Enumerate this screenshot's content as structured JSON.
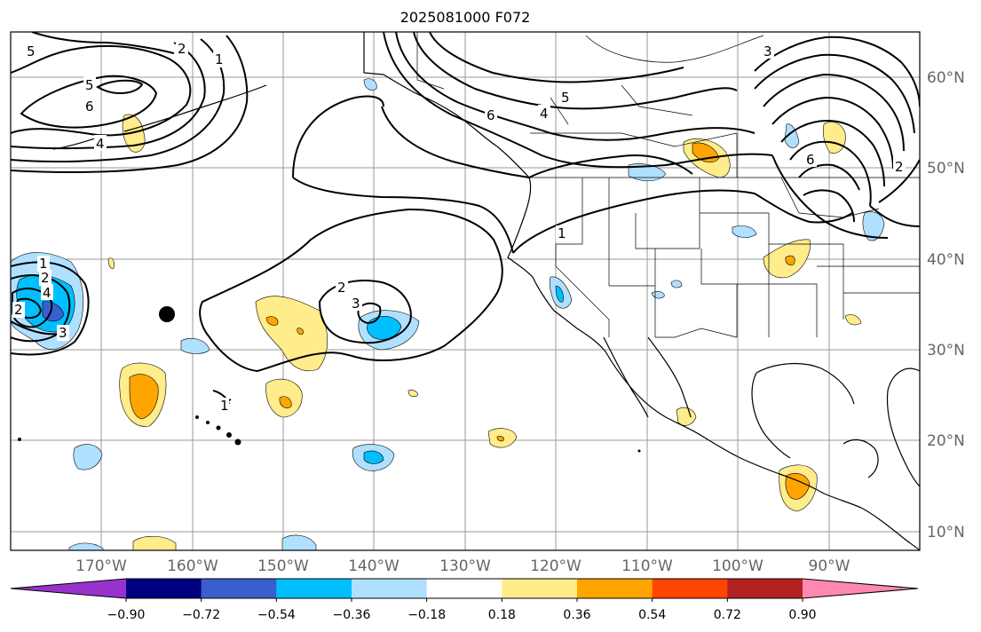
{
  "title": "2025081000 F072",
  "map": {
    "projection": "PlateCarree",
    "lon_range": [
      -180,
      -80
    ],
    "lat_range": [
      8,
      65
    ],
    "lon_ticks": [
      "170°W",
      "160°W",
      "150°W",
      "140°W",
      "130°W",
      "120°W",
      "110°W",
      "100°W",
      "90°W"
    ],
    "lat_ticks": [
      "60°N",
      "50°N",
      "40°N",
      "30°N",
      "20°N",
      "10°N"
    ],
    "gridlines": true,
    "marker": "storm center dot"
  },
  "contour_labels": [
    "5",
    "2",
    "1",
    "5",
    "6",
    "4",
    "6",
    "4",
    "5",
    "3",
    "1",
    "2",
    "4",
    "2",
    "3",
    "2",
    "3",
    "1",
    "1",
    "6",
    "2"
  ],
  "colorbar": {
    "orientation": "horizontal",
    "extend": "both",
    "colors": [
      "#9932cc",
      "#000080",
      "#3a5fcd",
      "#00bfff",
      "#b0e0ff",
      "#ffffff",
      "#ffec8b",
      "#ffa500",
      "#ff4500",
      "#b22222",
      "#ff88b0"
    ],
    "tick_labels": [
      "−0.90",
      "−0.72",
      "−0.54",
      "−0.36",
      "−0.18",
      "0.18",
      "0.36",
      "0.54",
      "0.72",
      "0.90"
    ]
  }
}
